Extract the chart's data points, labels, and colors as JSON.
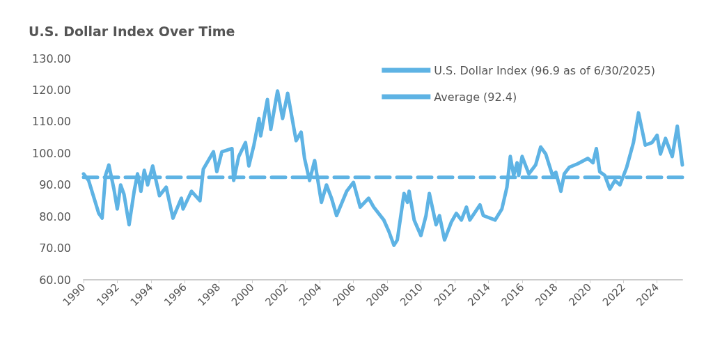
{
  "chart_data": {
    "type": "line",
    "title": "U.S. Dollar Index Over Time",
    "legend": "top right",
    "grid": false,
    "marker": "none",
    "xlim": [
      1990,
      2025.5
    ],
    "xticks": [
      1990,
      1992,
      1994,
      1996,
      1998,
      2000,
      2002,
      2004,
      2006,
      2008,
      2010,
      2012,
      2014,
      2016,
      2018,
      2020,
      2022,
      2024
    ],
    "ylim": [
      60,
      130
    ],
    "yticks": [
      {
        "value": 60,
        "label": "60.00"
      },
      {
        "value": 70,
        "label": "70.00"
      },
      {
        "value": 80,
        "label": "80.00"
      },
      {
        "value": 90,
        "label": "90.00"
      },
      {
        "value": 100,
        "label": "100.00"
      },
      {
        "value": 110,
        "label": "110.00"
      },
      {
        "value": 120,
        "label": "120.00"
      },
      {
        "value": 130,
        "label": "130.00"
      }
    ],
    "series": [
      {
        "name": "U.S. Dollar Index (96.9 as of 6/30/2025)",
        "color": "#5eb3e4",
        "line_style": "solid",
        "x": [
          1990.0,
          1990.3,
          1990.7,
          1990.9,
          1991.1,
          1991.3,
          1991.5,
          1991.8,
          1992.0,
          1992.2,
          1992.4,
          1992.7,
          1993.0,
          1993.2,
          1993.4,
          1993.6,
          1993.8,
          1994.1,
          1994.5,
          1994.9,
          1995.3,
          1995.8,
          1995.9,
          1996.4,
          1996.9,
          1997.1,
          1997.7,
          1997.9,
          1998.2,
          1998.8,
          1998.9,
          1999.2,
          1999.6,
          1999.8,
          2000.1,
          2000.4,
          2000.5,
          2000.9,
          2001.1,
          2001.5,
          2001.8,
          2002.1,
          2002.6,
          2002.9,
          2003.1,
          2003.4,
          2003.7,
          2004.1,
          2004.4,
          2004.7,
          2005.0,
          2005.6,
          2006.0,
          2006.4,
          2006.9,
          2007.2,
          2007.8,
          2008.1,
          2008.4,
          2008.6,
          2009.0,
          2009.2,
          2009.3,
          2009.6,
          2010.0,
          2010.3,
          2010.5,
          2010.9,
          2011.1,
          2011.4,
          2011.8,
          2012.1,
          2012.4,
          2012.7,
          2012.9,
          2013.5,
          2013.7,
          2014.4,
          2014.8,
          2015.1,
          2015.3,
          2015.5,
          2015.7,
          2015.8,
          2016.0,
          2016.4,
          2016.8,
          2017.1,
          2017.4,
          2017.8,
          2018.0,
          2018.3,
          2018.5,
          2018.8,
          2019.3,
          2019.9,
          2020.2,
          2020.4,
          2020.6,
          2020.9,
          2021.2,
          2021.5,
          2021.8,
          2022.2,
          2022.6,
          2022.9,
          2023.3,
          2023.7,
          2024.0,
          2024.2,
          2024.5,
          2024.9,
          2025.2,
          2025.5
        ],
        "values": [
          93.5,
          91.4,
          84.5,
          81,
          79.5,
          93,
          96.3,
          88.7,
          82.4,
          90,
          87,
          77.4,
          88,
          93.5,
          88,
          94.6,
          90,
          96,
          86.6,
          89.3,
          79.5,
          85.8,
          82.4,
          88,
          85,
          95,
          100.5,
          94.2,
          100.5,
          101.5,
          91.4,
          99,
          103.4,
          96,
          102.6,
          111,
          105.5,
          117,
          107.6,
          119.7,
          111,
          119,
          104,
          106.7,
          98.4,
          91.4,
          97.7,
          84.5,
          90,
          85.8,
          80.3,
          88,
          90.8,
          83,
          85.8,
          83,
          78.9,
          75.3,
          70.9,
          72.6,
          87.3,
          84.5,
          88,
          78.9,
          74,
          80.3,
          87.3,
          77.4,
          80.3,
          72.6,
          78.2,
          81,
          78.9,
          83,
          78.9,
          83.7,
          80.3,
          78.9,
          82.4,
          89.3,
          99,
          93,
          97,
          93,
          99,
          93.5,
          96.3,
          102,
          99.8,
          93,
          94,
          88,
          93.5,
          95.6,
          96.7,
          98.4,
          97,
          101.5,
          94.2,
          93,
          88.7,
          91.4,
          90,
          95.6,
          103.4,
          112.8,
          102.6,
          103.4,
          105.7,
          99.8,
          104.7,
          99,
          108.6,
          96.3
        ]
      },
      {
        "name": "Average (92.4)",
        "color": "#5eb3e4",
        "line_style": "dashed",
        "x": [
          1990,
          2025.5
        ],
        "values": [
          92.4,
          92.4
        ]
      }
    ]
  }
}
